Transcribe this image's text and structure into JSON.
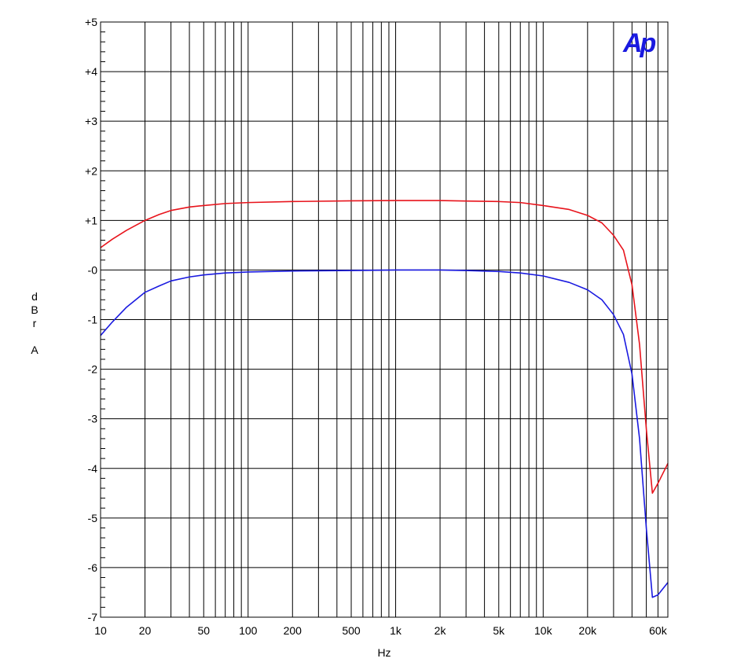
{
  "chart_data": {
    "type": "line",
    "xscale": "log",
    "xlim": [
      10,
      70000
    ],
    "ylim": [
      -7,
      5
    ],
    "grid": true,
    "legend": "none",
    "xlabel": "Hz",
    "ylabel_chars": [
      "d",
      "B",
      "r",
      "",
      "A"
    ],
    "x_ticks": [
      {
        "value": 10,
        "label": "10"
      },
      {
        "value": 20,
        "label": "20"
      },
      {
        "value": 50,
        "label": "50"
      },
      {
        "value": 100,
        "label": "100"
      },
      {
        "value": 200,
        "label": "200"
      },
      {
        "value": 500,
        "label": "500"
      },
      {
        "value": 1000,
        "label": "1k"
      },
      {
        "value": 2000,
        "label": "2k"
      },
      {
        "value": 5000,
        "label": "5k"
      },
      {
        "value": 10000,
        "label": "10k"
      },
      {
        "value": 20000,
        "label": "20k"
      },
      {
        "value": 60000,
        "label": "60k"
      }
    ],
    "y_ticks": [
      {
        "value": 5,
        "label": "+5"
      },
      {
        "value": 4,
        "label": "+4"
      },
      {
        "value": 3,
        "label": "+3"
      },
      {
        "value": 2,
        "label": "+2"
      },
      {
        "value": 1,
        "label": "+1"
      },
      {
        "value": 0,
        "label": "-0"
      },
      {
        "value": -1,
        "label": "-1"
      },
      {
        "value": -2,
        "label": "-2"
      },
      {
        "value": -3,
        "label": "-3"
      },
      {
        "value": -4,
        "label": "-4"
      },
      {
        "value": -5,
        "label": "-5"
      },
      {
        "value": -6,
        "label": "-6"
      },
      {
        "value": -7,
        "label": "-7"
      }
    ],
    "series": [
      {
        "color": "#e8141c",
        "points": [
          [
            10,
            0.45
          ],
          [
            12,
            0.62
          ],
          [
            15,
            0.8
          ],
          [
            20,
            1.0
          ],
          [
            25,
            1.12
          ],
          [
            30,
            1.2
          ],
          [
            40,
            1.27
          ],
          [
            50,
            1.3
          ],
          [
            70,
            1.34
          ],
          [
            100,
            1.36
          ],
          [
            200,
            1.38
          ],
          [
            500,
            1.395
          ],
          [
            1000,
            1.4
          ],
          [
            2000,
            1.4
          ],
          [
            3000,
            1.39
          ],
          [
            5000,
            1.38
          ],
          [
            7000,
            1.36
          ],
          [
            10000,
            1.3
          ],
          [
            15000,
            1.22
          ],
          [
            20000,
            1.1
          ],
          [
            25000,
            0.95
          ],
          [
            30000,
            0.7
          ],
          [
            35000,
            0.4
          ],
          [
            40000,
            -0.3
          ],
          [
            45000,
            -1.5
          ],
          [
            50000,
            -3.2
          ],
          [
            55000,
            -4.5
          ],
          [
            60000,
            -4.3
          ],
          [
            70000,
            -3.9
          ]
        ]
      },
      {
        "color": "#1a1ae0",
        "points": [
          [
            10,
            -1.32
          ],
          [
            12,
            -1.05
          ],
          [
            15,
            -0.75
          ],
          [
            20,
            -0.45
          ],
          [
            25,
            -0.32
          ],
          [
            30,
            -0.22
          ],
          [
            40,
            -0.14
          ],
          [
            50,
            -0.1
          ],
          [
            70,
            -0.06
          ],
          [
            100,
            -0.04
          ],
          [
            200,
            -0.02
          ],
          [
            500,
            -0.01
          ],
          [
            1000,
            0.0
          ],
          [
            2000,
            0.0
          ],
          [
            3000,
            -0.01
          ],
          [
            5000,
            -0.03
          ],
          [
            7000,
            -0.06
          ],
          [
            10000,
            -0.12
          ],
          [
            15000,
            -0.25
          ],
          [
            20000,
            -0.4
          ],
          [
            25000,
            -0.6
          ],
          [
            30000,
            -0.9
          ],
          [
            35000,
            -1.3
          ],
          [
            40000,
            -2.1
          ],
          [
            45000,
            -3.4
          ],
          [
            50000,
            -5.2
          ],
          [
            55000,
            -6.6
          ],
          [
            60000,
            -6.55
          ],
          [
            70000,
            -6.3
          ]
        ]
      }
    ]
  },
  "logo": {
    "text": "Ap",
    "color": "#1a1ae0"
  }
}
